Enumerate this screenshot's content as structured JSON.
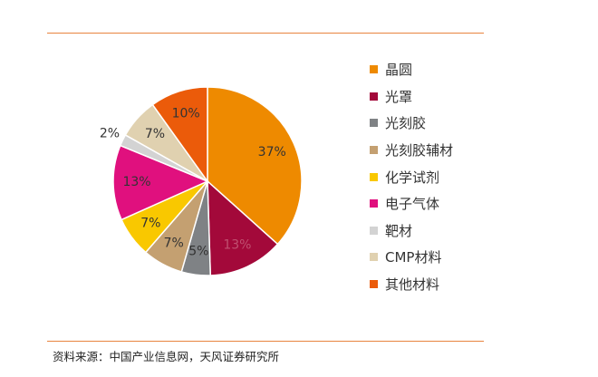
{
  "chart_data": {
    "type": "pie",
    "categories": [
      "晶圆",
      "光罩",
      "光刻胶",
      "光刻胶辅材",
      "化学试剂",
      "电子气体",
      "靶材",
      "CMP材料",
      "其他材料"
    ],
    "values": [
      37,
      13,
      5,
      7,
      7,
      13,
      2,
      7,
      10
    ],
    "labels": [
      "37%",
      "13%",
      "5%",
      "7%",
      "7%",
      "13%",
      "2%",
      "7%",
      "10%"
    ],
    "colors": [
      "#EE8A00",
      "#A3093A",
      "#7F8285",
      "#C4A071",
      "#F9C800",
      "#E0107E",
      "#D3D3D3",
      "#E0D1B0",
      "#EB5B0A"
    ],
    "label_colors": [
      "#333333",
      "#C05070",
      "#333333",
      "#333333",
      "#333333",
      "#333333",
      "#333333",
      "#333333",
      "#333333"
    ],
    "start_angle_deg": 0,
    "direction": "clockwise",
    "legend_position": "right"
  },
  "footer": {
    "source": "资料来源：中国产业信息网，天风证券研究所"
  }
}
